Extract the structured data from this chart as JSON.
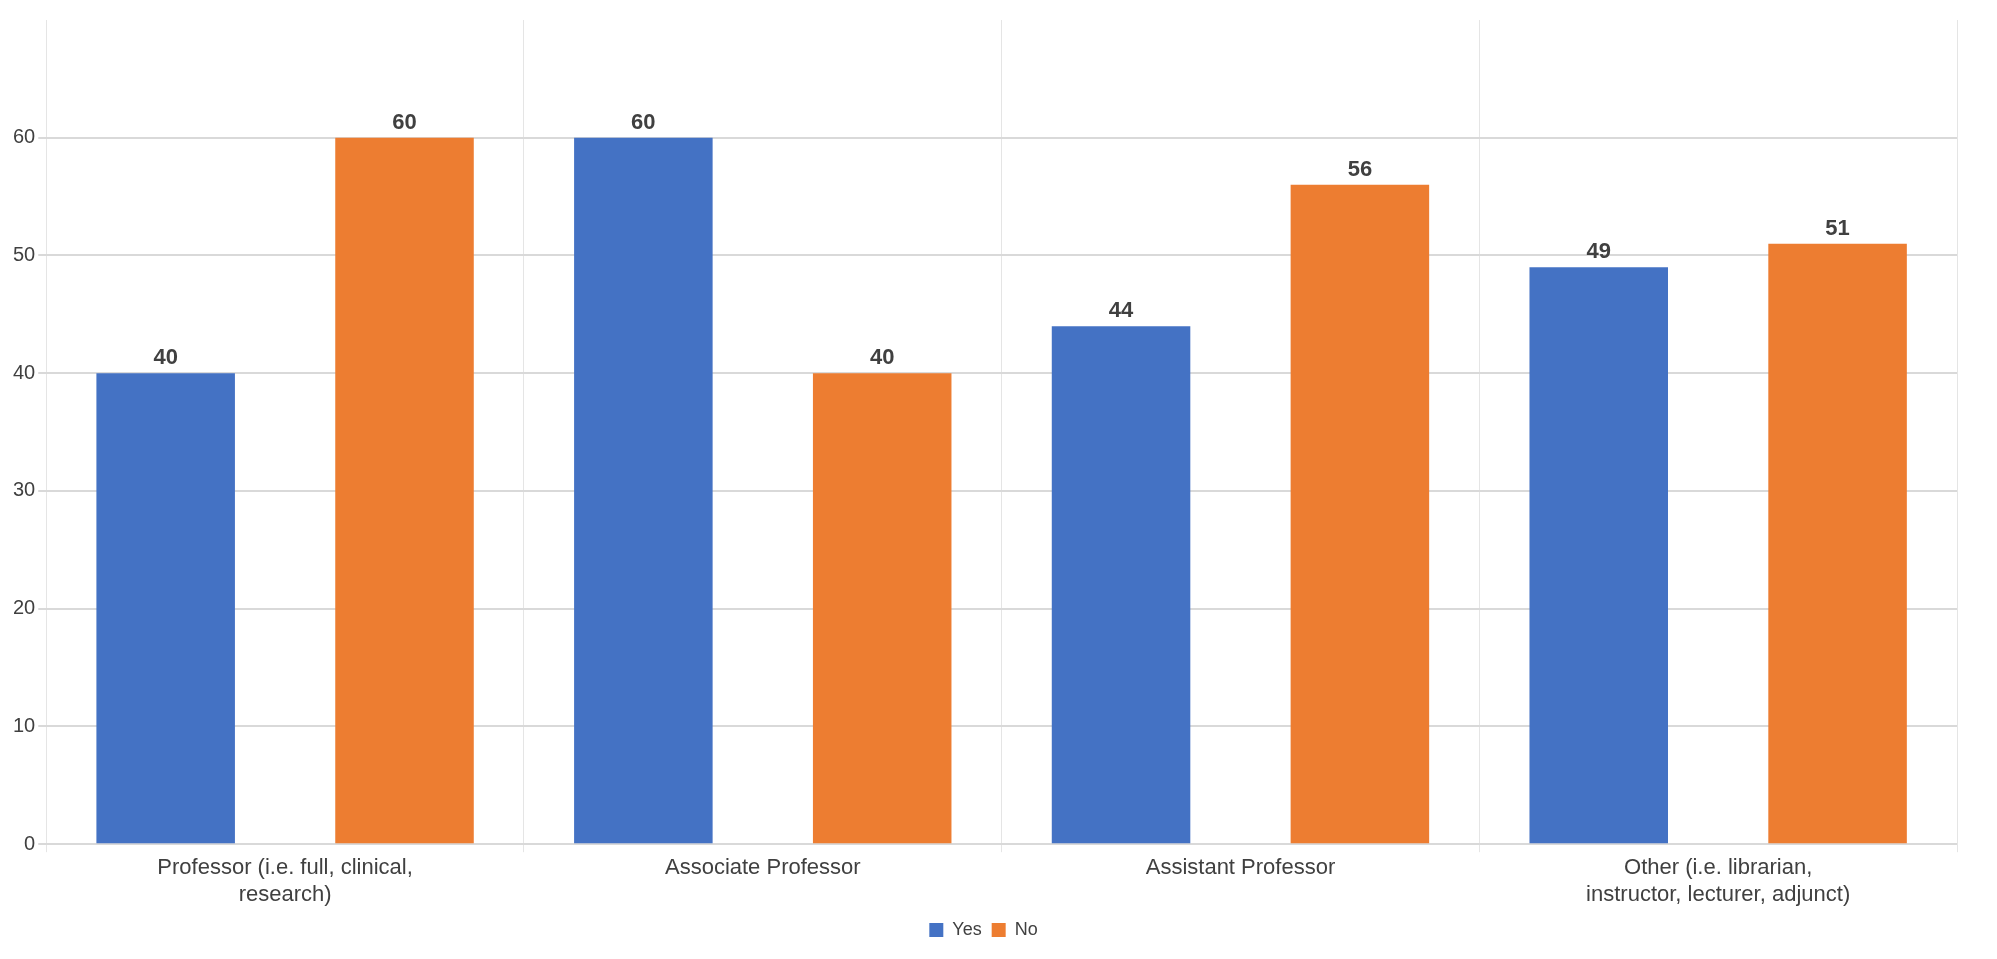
{
  "chart_data": {
    "type": "bar",
    "categories": [
      "Professor (i.e. full, clinical, research)",
      "Associate Professor",
      "Assistant Professor",
      "Other (i.e. librarian, instructor, lecturer, adjunct)"
    ],
    "series": [
      {
        "name": "Yes",
        "color": "#4472c4",
        "values": [
          40,
          60,
          44,
          49
        ]
      },
      {
        "name": "No",
        "color": "#ed7d31",
        "values": [
          60,
          40,
          56,
          51
        ]
      }
    ],
    "ylim": [
      0,
      70
    ],
    "yticks": [
      0,
      10,
      20,
      30,
      40,
      50,
      60
    ],
    "grid": true,
    "legend": "bottom",
    "data_labels": true
  }
}
